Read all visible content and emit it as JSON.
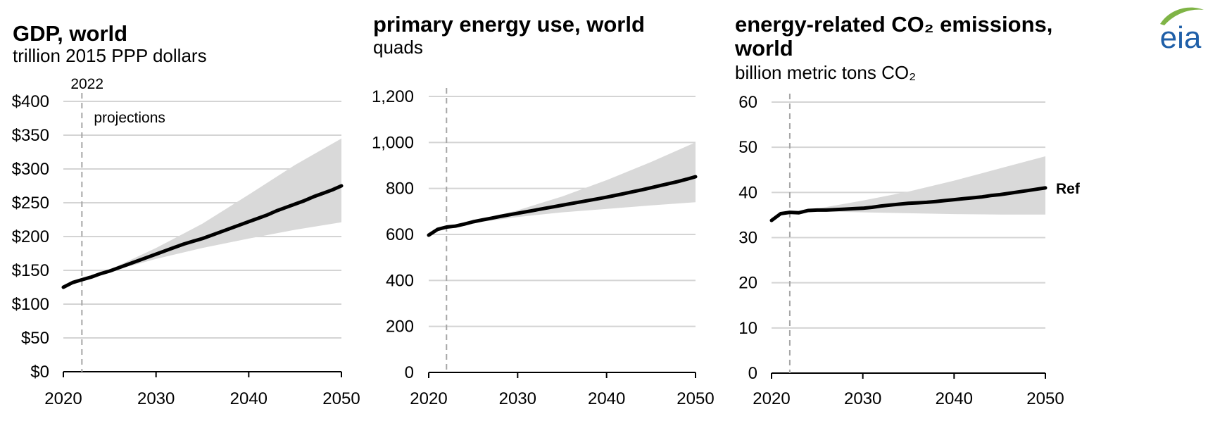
{
  "logo": {
    "text": "eia",
    "color": "#1f5fa8",
    "swoosh_color": "#7fb446"
  },
  "colors": {
    "line": "#000000",
    "band": "#d9d9d9",
    "grid": "#d4d4d4",
    "dashed": "#a6a6a6",
    "axis": "#000000"
  },
  "chart_data": [
    {
      "type": "line",
      "title": "GDP, world",
      "subtitle": "trillion 2015 PPP dollars",
      "xlabel": "",
      "ylabel": "",
      "xlim": [
        2020,
        2050
      ],
      "ylim": [
        0,
        400
      ],
      "y_ticks": [
        0,
        50,
        100,
        150,
        200,
        250,
        300,
        350,
        400
      ],
      "y_tick_labels": [
        "$0",
        "$50",
        "$100",
        "$150",
        "$200",
        "$250",
        "$300",
        "$350",
        "$400"
      ],
      "x_ticks": [
        2020,
        2030,
        2040,
        2050
      ],
      "x_tick_labels": [
        "2020",
        "2030",
        "2040",
        "2050"
      ],
      "grid": true,
      "vline": {
        "x": 2022,
        "label": "2022"
      },
      "annotation": "projections",
      "x": [
        2020,
        2021,
        2022,
        2023,
        2024,
        2025,
        2026,
        2027,
        2028,
        2029,
        2030,
        2031,
        2032,
        2033,
        2034,
        2035,
        2036,
        2037,
        2038,
        2039,
        2040,
        2041,
        2042,
        2043,
        2044,
        2045,
        2046,
        2047,
        2048,
        2049,
        2050
      ],
      "series": [
        {
          "values": [
            125,
            132,
            136,
            140,
            145,
            149,
            154,
            159,
            164,
            169,
            174,
            179,
            184,
            189,
            193,
            197,
            202,
            207,
            212,
            217,
            222,
            227,
            232,
            238,
            243,
            248,
            253,
            259,
            264,
            269,
            275
          ]
        }
      ],
      "band": {
        "x": [
          2022,
          2025,
          2030,
          2035,
          2040,
          2045,
          2050
        ],
        "high": [
          136,
          151,
          183,
          219,
          262,
          306,
          345
        ],
        "low": [
          136,
          148,
          167,
          183,
          197,
          210,
          221
        ]
      }
    },
    {
      "type": "line",
      "title": "primary energy use, world",
      "subtitle": "quads",
      "xlabel": "",
      "ylabel": "",
      "xlim": [
        2020,
        2050
      ],
      "ylim": [
        0,
        1200
      ],
      "y_ticks": [
        0,
        200,
        400,
        600,
        800,
        1000,
        1200
      ],
      "y_tick_labels": [
        "0",
        "200",
        "400",
        "600",
        "800",
        "1,000",
        "1,200"
      ],
      "x_ticks": [
        2020,
        2030,
        2040,
        2050
      ],
      "x_tick_labels": [
        "2020",
        "2030",
        "2040",
        "2050"
      ],
      "grid": true,
      "vline": {
        "x": 2022,
        "label": ""
      },
      "annotation": "",
      "x": [
        2020,
        2021,
        2022,
        2023,
        2024,
        2025,
        2026,
        2027,
        2028,
        2029,
        2030,
        2031,
        2032,
        2033,
        2034,
        2035,
        2036,
        2037,
        2038,
        2039,
        2040,
        2041,
        2042,
        2043,
        2044,
        2045,
        2046,
        2047,
        2048,
        2049,
        2050
      ],
      "series": [
        {
          "values": [
            597,
            622,
            632,
            636,
            645,
            655,
            663,
            670,
            678,
            685,
            692,
            699,
            706,
            713,
            720,
            727,
            734,
            741,
            748,
            755,
            762,
            770,
            778,
            786,
            794,
            803,
            812,
            821,
            830,
            840,
            851
          ]
        }
      ],
      "band": {
        "x": [
          2022,
          2025,
          2030,
          2035,
          2040,
          2045,
          2050
        ],
        "high": [
          632,
          657,
          705,
          765,
          836,
          915,
          1000
        ],
        "low": [
          632,
          650,
          676,
          696,
          711,
          726,
          740
        ]
      }
    },
    {
      "type": "line",
      "title": "energy-related CO₂ emissions,",
      "title2": "world",
      "subtitle": "billion metric tons CO₂",
      "xlabel": "",
      "ylabel": "",
      "xlim": [
        2020,
        2050
      ],
      "ylim": [
        0,
        60
      ],
      "y_ticks": [
        0,
        10,
        20,
        30,
        40,
        50,
        60
      ],
      "y_tick_labels": [
        "0",
        "10",
        "20",
        "30",
        "40",
        "50",
        "60"
      ],
      "x_ticks": [
        2020,
        2030,
        2040,
        2050
      ],
      "x_tick_labels": [
        "2020",
        "2030",
        "2040",
        "2050"
      ],
      "grid": true,
      "vline": {
        "x": 2022,
        "label": ""
      },
      "annotation": "",
      "series_label": "Ref",
      "x": [
        2020,
        2021,
        2022,
        2023,
        2024,
        2025,
        2026,
        2027,
        2028,
        2029,
        2030,
        2031,
        2032,
        2033,
        2034,
        2035,
        2036,
        2037,
        2038,
        2039,
        2040,
        2041,
        2042,
        2043,
        2044,
        2045,
        2046,
        2047,
        2048,
        2049,
        2050
      ],
      "series": [
        {
          "values": [
            33.8,
            35.3,
            35.6,
            35.5,
            36.0,
            36.1,
            36.1,
            36.2,
            36.3,
            36.4,
            36.5,
            36.7,
            37.0,
            37.2,
            37.4,
            37.6,
            37.7,
            37.8,
            38.0,
            38.2,
            38.4,
            38.6,
            38.8,
            39.0,
            39.3,
            39.5,
            39.8,
            40.1,
            40.4,
            40.7,
            41.0
          ]
        }
      ],
      "band": {
        "x": [
          2022,
          2025,
          2030,
          2035,
          2040,
          2045,
          2050
        ],
        "high": [
          35.6,
          36.4,
          38.2,
          40.2,
          42.6,
          45.3,
          48.0
        ],
        "low": [
          35.6,
          35.8,
          35.6,
          35.4,
          35.2,
          35.1,
          35.1
        ]
      }
    }
  ]
}
